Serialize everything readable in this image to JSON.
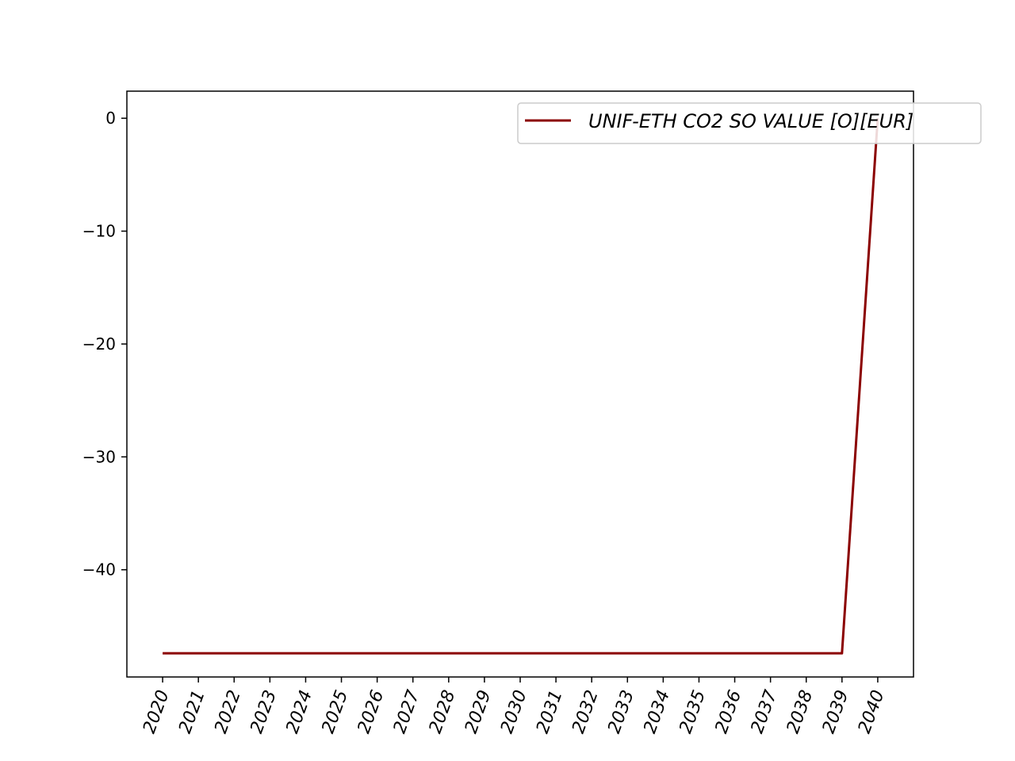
{
  "chart_data": {
    "type": "line",
    "title": "",
    "xlabel": "",
    "ylabel": "",
    "x": [
      2020,
      2021,
      2022,
      2023,
      2024,
      2025,
      2026,
      2027,
      2028,
      2029,
      2030,
      2031,
      2032,
      2033,
      2034,
      2035,
      2036,
      2037,
      2038,
      2039,
      2040
    ],
    "x_tick_labels": [
      "2020",
      "2021",
      "2022",
      "2023",
      "2024",
      "2025",
      "2026",
      "2027",
      "2028",
      "2029",
      "2030",
      "2031",
      "2032",
      "2033",
      "2034",
      "2035",
      "2036",
      "2037",
      "2038",
      "2039",
      "2040"
    ],
    "y_ticks": [
      0,
      -10,
      -20,
      -30,
      -40
    ],
    "y_tick_labels": [
      "0",
      "−10",
      "−20",
      "−30",
      "−40"
    ],
    "ylim": [
      -49.5,
      2.4
    ],
    "xlim": [
      2019,
      2041
    ],
    "grid": false,
    "legend_position": "top-right",
    "series": [
      {
        "name": "UNIF-ETH CO2 SO VALUE [O][EUR]",
        "color": "#8b0000",
        "values": [
          -47.4,
          -47.4,
          -47.4,
          -47.4,
          -47.4,
          -47.4,
          -47.4,
          -47.4,
          -47.4,
          -47.4,
          -47.4,
          -47.4,
          -47.4,
          -47.4,
          -47.4,
          -47.4,
          -47.4,
          -47.4,
          -47.4,
          -47.4,
          0
        ]
      }
    ]
  }
}
